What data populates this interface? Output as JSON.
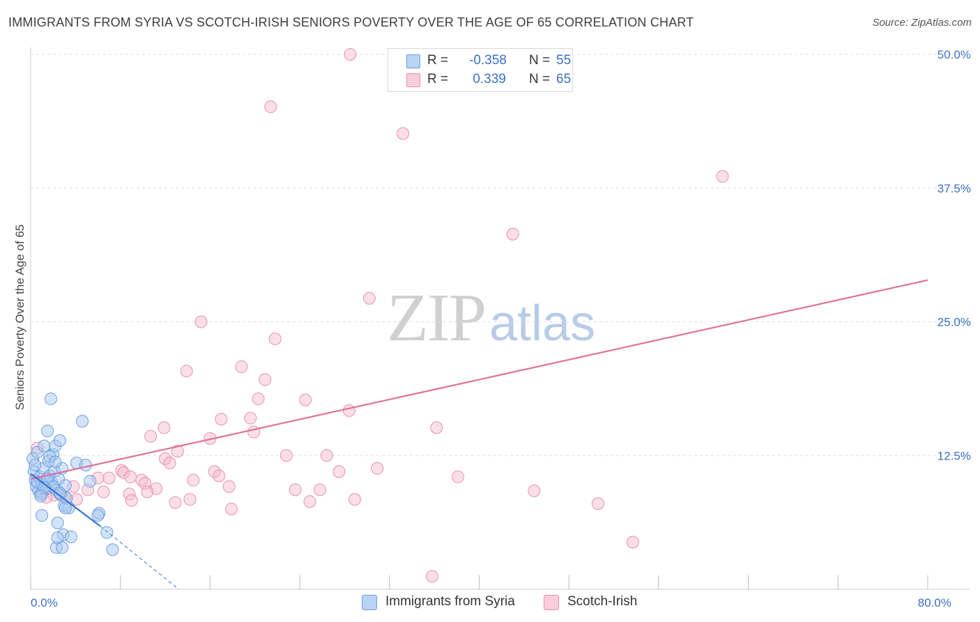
{
  "header": {
    "title": "IMMIGRANTS FROM SYRIA VS SCOTCH-IRISH SENIORS POVERTY OVER THE AGE OF 65 CORRELATION CHART",
    "source": "Source: ZipAtlas.com"
  },
  "watermark": {
    "zip": "ZIP",
    "atlas": "atlas"
  },
  "legend": {
    "syria": {
      "r_label": "R =",
      "r_value": "-0.358",
      "n_label": "N =",
      "n_value": "55"
    },
    "scotch": {
      "r_label": "R =",
      "r_value": " 0.339",
      "n_label": "N =",
      "n_value": "65"
    }
  },
  "bottom_legend": {
    "syria": "Immigrants from Syria",
    "scotch": "Scotch-Irish"
  },
  "colors": {
    "syria_fill": "#a8c8f0",
    "syria_stroke": "#6a9ee0",
    "syria_line": "#3572d0",
    "scotch_fill": "#f5b8cc",
    "scotch_stroke": "#e890ac",
    "scotch_line": "#e0709a",
    "axis_text": "#3a6fc4",
    "grid": "#e0e0e0"
  },
  "chart_data": {
    "type": "scatter",
    "title": "IMMIGRANTS FROM SYRIA VS SCOTCH-IRISH SENIORS POVERTY OVER THE AGE OF 65 CORRELATION CHART",
    "xlabel": "",
    "ylabel": "Seniors Poverty Over the Age of 65",
    "xlim": [
      0,
      80
    ],
    "ylim": [
      0,
      50
    ],
    "x_ticks": [
      0,
      8,
      16,
      24,
      32,
      40,
      48,
      56,
      64,
      72,
      80
    ],
    "x_tick_labels": {
      "0": "0.0%",
      "80": "80.0%"
    },
    "y_ticks": [
      12.5,
      25.0,
      37.5,
      50.0
    ],
    "y_tick_labels": [
      "12.5%",
      "25.0%",
      "37.5%",
      "50.0%"
    ],
    "grid": true,
    "series": [
      {
        "name": "Immigrants from Syria",
        "R": -0.358,
        "N": 55,
        "trend": {
          "x": [
            0,
            6.2
          ],
          "y": [
            10.8,
            5.9
          ],
          "dashed_to": [
            13.2,
            0
          ]
        },
        "points": [
          [
            0.2,
            12.2
          ],
          [
            0.3,
            11.0
          ],
          [
            0.4,
            10.2
          ],
          [
            0.5,
            9.6
          ],
          [
            0.6,
            12.8
          ],
          [
            0.7,
            9.2
          ],
          [
            0.8,
            10.5
          ],
          [
            0.9,
            8.9
          ],
          [
            1.0,
            9.8
          ],
          [
            1.1,
            11.3
          ],
          [
            1.2,
            13.4
          ],
          [
            1.3,
            10.1
          ],
          [
            1.4,
            9.4
          ],
          [
            1.5,
            14.8
          ],
          [
            1.6,
            12.0
          ],
          [
            1.7,
            10.6
          ],
          [
            1.8,
            17.8
          ],
          [
            1.9,
            9.9
          ],
          [
            2.0,
            12.6
          ],
          [
            2.1,
            11.0
          ],
          [
            2.2,
            13.4
          ],
          [
            2.3,
            9.3
          ],
          [
            2.4,
            6.2
          ],
          [
            2.5,
            10.3
          ],
          [
            2.6,
            13.9
          ],
          [
            2.7,
            8.8
          ],
          [
            2.8,
            11.3
          ],
          [
            2.9,
            5.1
          ],
          [
            3.0,
            7.8
          ],
          [
            3.1,
            9.7
          ],
          [
            3.2,
            8.5
          ],
          [
            3.4,
            7.6
          ],
          [
            3.6,
            4.9
          ],
          [
            2.3,
            3.9
          ],
          [
            2.8,
            3.9
          ],
          [
            2.4,
            4.8
          ],
          [
            3.1,
            7.6
          ],
          [
            1.0,
            6.9
          ],
          [
            0.6,
            10.0
          ],
          [
            1.5,
            10.3
          ],
          [
            2.0,
            9.6
          ],
          [
            2.6,
            9.0
          ],
          [
            4.1,
            11.8
          ],
          [
            4.6,
            15.7
          ],
          [
            4.9,
            11.6
          ],
          [
            5.3,
            10.1
          ],
          [
            6.1,
            7.1
          ],
          [
            6.0,
            6.9
          ],
          [
            6.8,
            5.3
          ],
          [
            7.3,
            3.7
          ],
          [
            1.2,
            9.5
          ],
          [
            0.9,
            8.7
          ],
          [
            1.7,
            12.4
          ],
          [
            2.2,
            11.9
          ],
          [
            0.4,
            11.6
          ]
        ]
      },
      {
        "name": "Scotch-Irish",
        "R": 0.339,
        "N": 65,
        "trend": {
          "x": [
            0,
            80
          ],
          "y": [
            10.3,
            28.9
          ]
        },
        "points": [
          [
            28.5,
            50.0
          ],
          [
            21.4,
            45.1
          ],
          [
            33.2,
            42.6
          ],
          [
            61.7,
            38.6
          ],
          [
            43.0,
            33.2
          ],
          [
            30.2,
            27.2
          ],
          [
            15.2,
            25.0
          ],
          [
            21.8,
            23.4
          ],
          [
            18.8,
            20.8
          ],
          [
            13.9,
            20.4
          ],
          [
            20.9,
            19.6
          ],
          [
            20.3,
            17.8
          ],
          [
            24.5,
            17.7
          ],
          [
            28.4,
            16.7
          ],
          [
            17.0,
            15.9
          ],
          [
            19.6,
            16.0
          ],
          [
            11.9,
            15.1
          ],
          [
            36.2,
            15.1
          ],
          [
            10.7,
            14.3
          ],
          [
            16.0,
            14.1
          ],
          [
            19.9,
            14.7
          ],
          [
            13.1,
            12.9
          ],
          [
            22.8,
            12.5
          ],
          [
            26.4,
            12.5
          ],
          [
            12.0,
            12.2
          ],
          [
            30.9,
            11.3
          ],
          [
            8.1,
            11.1
          ],
          [
            8.3,
            10.9
          ],
          [
            12.4,
            11.8
          ],
          [
            16.4,
            11.0
          ],
          [
            7.0,
            10.4
          ],
          [
            8.9,
            10.5
          ],
          [
            6.0,
            10.4
          ],
          [
            9.9,
            10.2
          ],
          [
            16.8,
            10.6
          ],
          [
            14.5,
            10.2
          ],
          [
            27.5,
            11.0
          ],
          [
            38.1,
            10.5
          ],
          [
            3.8,
            9.6
          ],
          [
            5.1,
            9.3
          ],
          [
            10.2,
            9.9
          ],
          [
            11.2,
            9.4
          ],
          [
            17.7,
            9.6
          ],
          [
            23.6,
            9.3
          ],
          [
            25.8,
            9.3
          ],
          [
            44.9,
            9.2
          ],
          [
            6.5,
            9.1
          ],
          [
            8.8,
            8.9
          ],
          [
            10.4,
            9.1
          ],
          [
            2.1,
            8.8
          ],
          [
            3.0,
            8.7
          ],
          [
            4.1,
            8.4
          ],
          [
            9.0,
            8.3
          ],
          [
            12.9,
            8.1
          ],
          [
            14.2,
            8.4
          ],
          [
            24.9,
            8.2
          ],
          [
            28.9,
            8.4
          ],
          [
            50.6,
            8.0
          ],
          [
            17.9,
            7.5
          ],
          [
            1.4,
            8.6
          ],
          [
            53.7,
            4.4
          ],
          [
            35.8,
            1.2
          ],
          [
            0.6,
            13.2
          ],
          [
            1.0,
            9.0
          ],
          [
            2.6,
            8.9
          ]
        ]
      }
    ]
  }
}
